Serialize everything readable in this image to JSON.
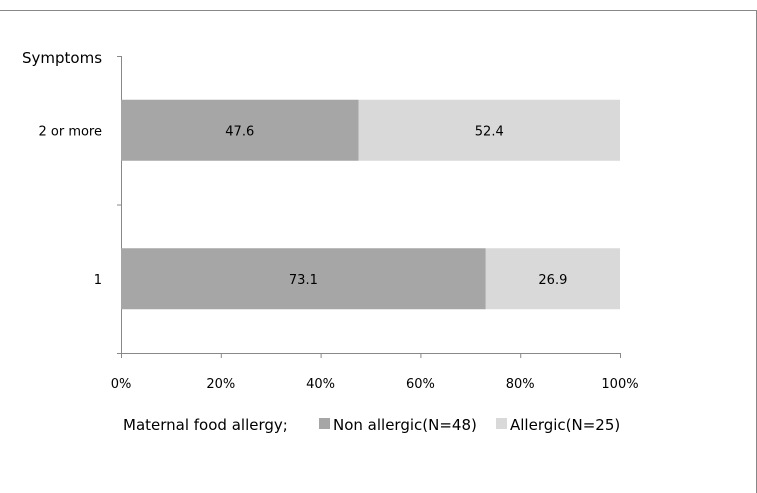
{
  "chart_data": {
    "type": "bar",
    "orientation": "horizontal",
    "stacked": true,
    "percent_stacked": true,
    "ylabel": "Symptoms",
    "xlabel": "",
    "categories": [
      "2 or more",
      "1"
    ],
    "series": [
      {
        "name": "Non allergic(N=48)",
        "values": [
          47.6,
          73.1
        ],
        "color": "#a6a6a6"
      },
      {
        "name": "Allergic(N=25)",
        "values": [
          52.4,
          26.9
        ],
        "color": "#d9d9d9"
      }
    ],
    "xlim": [
      0,
      100
    ],
    "xticks": [
      "0%",
      "20%",
      "40%",
      "60%",
      "80%",
      "100%"
    ],
    "grid": false,
    "legend": {
      "title": "Maternal food allergy;",
      "position": "bottom"
    }
  }
}
